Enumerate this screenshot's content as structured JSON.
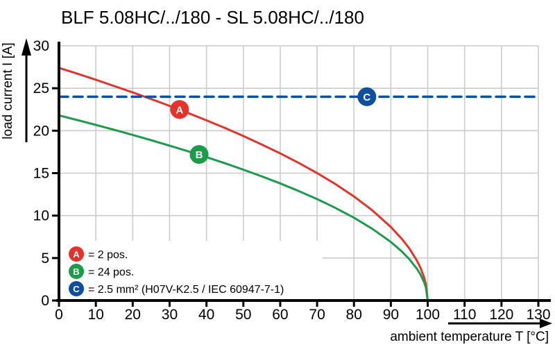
{
  "page": {
    "title": "BLF 5.08HC/../180 - SL 5.08HC/../180"
  },
  "colors": {
    "red": "#e5332a",
    "green": "#1b9c4b",
    "blue": "#0e4f9f",
    "grid": "#cbcbcb",
    "axis": "#000000",
    "background": "#ffffff"
  },
  "chart_data": {
    "type": "line",
    "title": "BLF 5.08HC/../180 - SL 5.08HC/../180",
    "xlabel": "ambient temperature T [°C]",
    "ylabel": "load current I [A]",
    "xlim": [
      0,
      130
    ],
    "ylim": [
      0,
      30
    ],
    "x_ticks": [
      0,
      10,
      20,
      30,
      40,
      50,
      60,
      70,
      80,
      90,
      100,
      110,
      120,
      130
    ],
    "y_ticks": [
      0,
      5,
      10,
      15,
      20,
      25,
      30
    ],
    "grid": true,
    "legend_position": "bottom-left",
    "series": [
      {
        "id": "A",
        "legend_label": "= 2 pos.",
        "color": "#e5332a",
        "line_style": "solid",
        "marker": {
          "letter": "A",
          "t": 32.7,
          "i": 22.5
        },
        "x": [
          0,
          5,
          10,
          15,
          20,
          25,
          30,
          35,
          40,
          45,
          50,
          55,
          60,
          65,
          70,
          75,
          80,
          85,
          90,
          93,
          95,
          97,
          98,
          99,
          99.5,
          100
        ],
        "y": [
          27.4,
          26.71,
          26.0,
          25.26,
          24.51,
          23.73,
          22.92,
          22.09,
          21.22,
          20.32,
          19.37,
          18.38,
          17.33,
          16.21,
          15.01,
          13.7,
          12.25,
          10.61,
          8.66,
          7.25,
          6.13,
          4.75,
          3.88,
          2.74,
          1.94,
          0
        ]
      },
      {
        "id": "B",
        "legend_label": "= 24 pos.",
        "color": "#1b9c4b",
        "line_style": "solid",
        "marker": {
          "letter": "B",
          "t": 38,
          "i": 17.2
        },
        "x": [
          0,
          5,
          10,
          15,
          20,
          25,
          30,
          35,
          40,
          45,
          50,
          55,
          60,
          65,
          70,
          75,
          80,
          85,
          90,
          93,
          95,
          97,
          98,
          99,
          99.5,
          100
        ],
        "y": [
          21.8,
          21.25,
          20.68,
          20.1,
          19.5,
          18.88,
          18.24,
          17.58,
          16.89,
          16.17,
          15.41,
          14.62,
          13.79,
          12.9,
          11.94,
          10.9,
          9.75,
          8.44,
          6.89,
          5.77,
          4.87,
          3.78,
          3.08,
          2.18,
          1.54,
          0
        ]
      },
      {
        "id": "C",
        "legend_label": "= 2.5 mm² (H07V-K2.5 / IEC 60947-7-1)",
        "color": "#0e4f9f",
        "line_style": "dashed",
        "marker": {
          "letter": "C",
          "t": 83.5,
          "i": 24
        },
        "x": [
          0,
          130
        ],
        "y": [
          24,
          24
        ]
      }
    ]
  }
}
